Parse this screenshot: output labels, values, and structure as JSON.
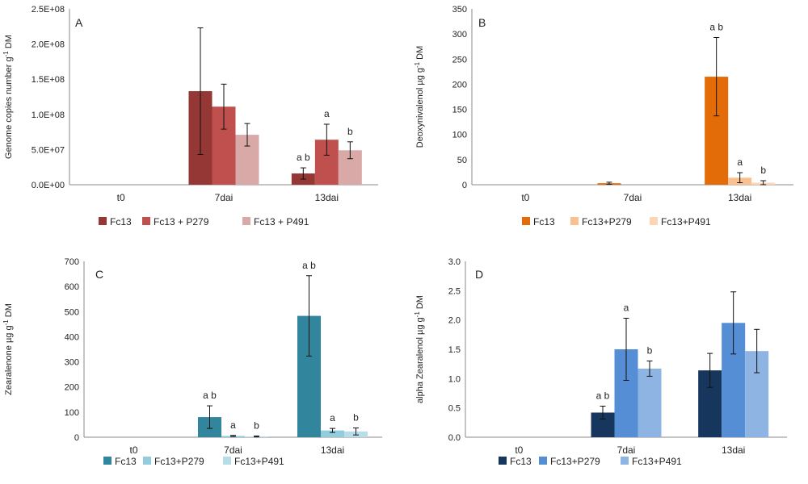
{
  "chart_data": [
    {
      "type": "bar",
      "panel": "A",
      "ylabel": "Genome copies number  g",
      "ylabel_sup": "-1",
      "ylabel_tail": " DM",
      "categories": [
        "t0",
        "7dai",
        "13dai"
      ],
      "ylim": [
        0,
        250000000
      ],
      "ytick_values": [
        0,
        50000000,
        100000000,
        150000000,
        200000000,
        250000000
      ],
      "ytick_labels": [
        "0.0E+00",
        "5.0E+07",
        "1.0E+08",
        "1.5E+08",
        "2.0E+08",
        "2.5E+08"
      ],
      "series": [
        {
          "name": "Fc13",
          "color": "#953735",
          "values": [
            0,
            133000000,
            16000000
          ],
          "errors": [
            0,
            90000000,
            8000000
          ],
          "labels": [
            "",
            "",
            "a b"
          ]
        },
        {
          "name": "Fc13 + P279",
          "color": "#C0504D",
          "values": [
            0,
            111000000,
            64000000
          ],
          "errors": [
            0,
            32000000,
            22000000
          ],
          "labels": [
            "",
            "",
            "a"
          ]
        },
        {
          "name": "Fc13 + P491",
          "color": "#D9A9A8",
          "values": [
            0,
            71000000,
            49000000
          ],
          "errors": [
            0,
            16000000,
            12000000
          ],
          "labels": [
            "",
            "",
            "b"
          ]
        }
      ]
    },
    {
      "type": "bar",
      "panel": "B",
      "ylabel": "Deoxynivalenol µg g",
      "ylabel_sup": "-1",
      "ylabel_tail": " DM",
      "categories": [
        "t0",
        "7dai",
        "13dai"
      ],
      "ylim": [
        0,
        350
      ],
      "ytick_values": [
        0,
        50,
        100,
        150,
        200,
        250,
        300,
        350
      ],
      "ytick_labels": [
        "0",
        "50",
        "100",
        "150",
        "200",
        "250",
        "300",
        "350"
      ],
      "series": [
        {
          "name": "Fc13",
          "color": "#E36C09",
          "values": [
            0,
            3,
            215
          ],
          "errors": [
            0,
            2,
            78
          ],
          "labels": [
            "",
            "",
            "a b"
          ]
        },
        {
          "name": "Fc13+P279",
          "color": "#FAC090",
          "values": [
            0,
            0,
            14
          ],
          "errors": [
            0,
            0,
            10
          ],
          "labels": [
            "",
            "",
            "a"
          ]
        },
        {
          "name": "Fc13+P491",
          "color": "#FCD5B5",
          "values": [
            0,
            0,
            4
          ],
          "errors": [
            0,
            0,
            4
          ],
          "labels": [
            "",
            "",
            "b"
          ]
        }
      ]
    },
    {
      "type": "bar",
      "panel": "C",
      "ylabel": "Zearalenone µg g",
      "ylabel_sup": "-1",
      "ylabel_tail": " DM",
      "categories": [
        "t0",
        "7dai",
        "13dai"
      ],
      "ylim": [
        0,
        700
      ],
      "ytick_values": [
        0,
        100,
        200,
        300,
        400,
        500,
        600,
        700
      ],
      "ytick_labels": [
        "0",
        "100",
        "200",
        "300",
        "400",
        "500",
        "600",
        "700"
      ],
      "series": [
        {
          "name": "Fc13",
          "color": "#31859C",
          "values": [
            0,
            80,
            483
          ],
          "errors": [
            0,
            45,
            160
          ],
          "labels": [
            "",
            "a b",
            "a b"
          ]
        },
        {
          "name": "Fc13+P279",
          "color": "#93CDDD",
          "values": [
            0,
            5,
            27
          ],
          "errors": [
            0,
            2,
            8
          ],
          "labels": [
            "",
            "a",
            "a"
          ]
        },
        {
          "name": "Fc13+P491",
          "color": "#B7DEE8",
          "values": [
            0,
            3,
            23
          ],
          "errors": [
            0,
            2,
            14
          ],
          "labels": [
            "",
            "b",
            "b"
          ]
        }
      ]
    },
    {
      "type": "bar",
      "panel": "D",
      "ylabel": "alpha Zearalenol µg g",
      "ylabel_sup": "-1",
      "ylabel_tail": " DM",
      "categories": [
        "t0",
        "7dai",
        "13dai"
      ],
      "ylim": [
        0,
        3.0
      ],
      "ytick_values": [
        0,
        0.5,
        1.0,
        1.5,
        2.0,
        2.5,
        3.0
      ],
      "ytick_labels": [
        "0.0",
        "0.5",
        "1.0",
        "1.5",
        "2.0",
        "2.5",
        "3.0"
      ],
      "series": [
        {
          "name": "Fc13",
          "color": "#17365D",
          "values": [
            0,
            0.42,
            1.14
          ],
          "errors": [
            0,
            0.11,
            0.29
          ],
          "labels": [
            "",
            "a b",
            ""
          ]
        },
        {
          "name": "Fc13+P279",
          "color": "#558ED5",
          "values": [
            0,
            1.5,
            1.95
          ],
          "errors": [
            0,
            0.53,
            0.53
          ],
          "labels": [
            "",
            "a",
            ""
          ]
        },
        {
          "name": "Fc13+P491",
          "color": "#8EB4E3",
          "values": [
            0,
            1.17,
            1.47
          ],
          "errors": [
            0,
            0.13,
            0.37
          ],
          "labels": [
            "",
            "b",
            ""
          ]
        }
      ]
    }
  ]
}
